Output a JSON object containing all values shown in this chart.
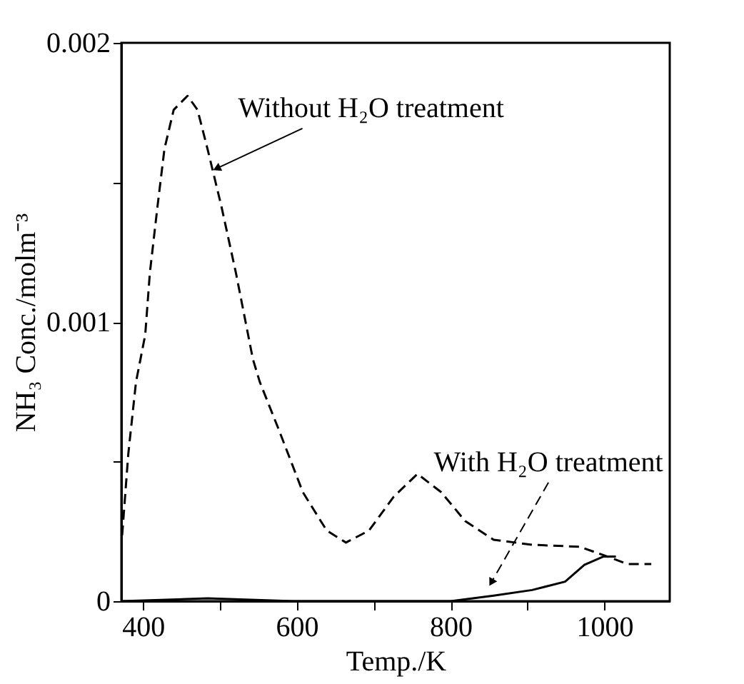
{
  "chart_data": {
    "type": "line",
    "xlabel": "Temp./K",
    "ylabel": "NH₃ Conc./molm⁻³",
    "xlim": [
      372,
      1085
    ],
    "ylim": [
      0,
      0.002
    ],
    "xticks": [
      400,
      {
        "value": 500,
        "label": null
      },
      600,
      {
        "value": 700,
        "label": null
      },
      800,
      {
        "value": 900,
        "label": null
      },
      1000
    ],
    "yticks": [
      0,
      {
        "value": 0.0005,
        "label": null
      },
      0.001,
      {
        "value": 0.0015,
        "label": null
      },
      0.002
    ],
    "grid": false,
    "marker": "none",
    "series": [
      {
        "color": "#000000",
        "line_style": "dashed",
        "x": [
          373,
          381,
          391,
          403,
          409,
          419,
          428,
          440,
          458,
          471,
          484,
          502,
          521,
          543,
          552,
          577,
          608,
          639,
          664,
          694,
          726,
          757,
          788,
          819,
          856,
          906,
          968,
          1005,
          1030,
          1061
        ],
        "values": [
          0.000236,
          0.000528,
          0.000785,
          0.000954,
          0.001175,
          0.001415,
          0.00162,
          0.00176,
          0.00181,
          0.00176,
          0.00162,
          0.001415,
          0.001175,
          0.000867,
          0.000785,
          0.000612,
          0.00039,
          0.000253,
          0.00021,
          0.000253,
          0.000374,
          0.000456,
          0.00039,
          0.000287,
          0.00022,
          0.000202,
          0.000195,
          0.000159,
          0.000133,
          0.000133
        ]
      },
      {
        "color": "#000000",
        "line_style": "solid",
        "x": [
          372,
          484,
          596,
          800,
          856,
          906,
          949,
          974,
          999,
          1015
        ],
        "values": [
          0,
          1e-05,
          0,
          0,
          2e-05,
          4e-05,
          7e-05,
          0.00013,
          0.00016,
          0.00016
        ]
      }
    ],
    "annotations": [
      {
        "text": "Without H₂O treatment",
        "x": 496,
        "y": 0.00155
      },
      {
        "text": "With H₂O treatment",
        "x": 853,
        "y": 6.7e-05
      }
    ]
  }
}
